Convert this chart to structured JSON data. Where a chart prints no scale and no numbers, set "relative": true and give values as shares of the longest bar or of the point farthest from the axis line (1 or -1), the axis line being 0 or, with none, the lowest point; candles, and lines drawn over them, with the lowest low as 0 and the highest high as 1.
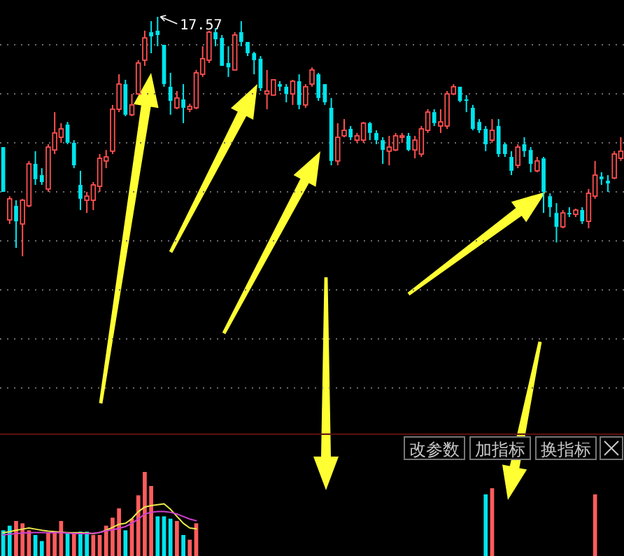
{
  "chart_data": [
    {
      "type": "candlestick",
      "relative": true,
      "grid": true,
      "annotations": [
        "17.57"
      ],
      "categories": [
        null,
        null,
        null,
        null,
        null,
        null,
        null,
        null,
        null,
        null,
        null,
        null,
        null,
        null,
        null,
        null,
        null,
        null,
        null,
        null,
        null,
        null,
        null,
        null,
        null,
        null,
        null,
        null,
        null,
        null,
        null,
        null,
        null,
        null,
        null,
        null,
        null,
        null,
        null,
        null,
        null,
        null,
        null,
        null,
        null,
        null,
        null,
        null,
        null,
        null,
        null,
        null,
        null,
        null,
        null,
        null,
        null,
        null,
        null,
        null,
        null,
        null,
        null,
        null,
        null,
        null,
        null,
        null,
        null,
        null,
        null,
        null,
        null,
        null,
        null,
        null,
        null,
        null,
        null,
        null,
        null,
        null,
        null,
        null,
        null,
        null,
        null,
        null,
        null,
        null,
        null,
        null,
        null,
        null,
        null,
        null,
        null
      ],
      "ohlc": [
        [
          0.456,
          0.456,
          0.269,
          0.269
        ],
        [
          0.152,
          0.251,
          0.135,
          0.24
        ],
        [
          0.211,
          0.234,
          0.035,
          0.146
        ],
        [
          0.135,
          0.24,
          0,
          0.234
        ],
        [
          0.211,
          0.398,
          0.205,
          0.386
        ],
        [
          0.386,
          0.439,
          0.298,
          0.322
        ],
        [
          0.339,
          0.368,
          0.298,
          0.31
        ],
        [
          0.281,
          0.468,
          0.269,
          0.456
        ],
        [
          0.444,
          0.602,
          0.427,
          0.515
        ],
        [
          0.497,
          0.556,
          0.474,
          0.532
        ],
        [
          0.55,
          0.561,
          0.468,
          0.474
        ],
        [
          0.474,
          0.485,
          0.368,
          0.38
        ],
        [
          0.298,
          0.357,
          0.193,
          0.24
        ],
        [
          0.234,
          0.269,
          0.181,
          0.251
        ],
        [
          0.234,
          0.31,
          0.193,
          0.298
        ],
        [
          0.292,
          0.427,
          0.269,
          0.409
        ],
        [
          0.398,
          0.444,
          0.368,
          0.415
        ],
        [
          0.439,
          0.632,
          0.427,
          0.614
        ],
        [
          0.614,
          0.76,
          0.602,
          0.719
        ],
        [
          0.719,
          0.737,
          0.585,
          0.591
        ],
        [
          0.591,
          0.678,
          0.585,
          0.632
        ],
        [
          0.678,
          0.819,
          0.673,
          0.807
        ],
        [
          0.819,
          0.942,
          0.795,
          0.912
        ],
        [
          0.936,
          0.982,
          0.848,
          0.918
        ],
        [
          0.942,
          1,
          0.877,
          0.924
        ],
        [
          0.883,
          0.883,
          0.708,
          0.719
        ],
        [
          0.708,
          0.766,
          0.591,
          0.649
        ],
        [
          0.62,
          0.69,
          0.614,
          0.661
        ],
        [
          0.655,
          0.719,
          0.556,
          0.62
        ],
        [
          0.614,
          0.637,
          0.602,
          0.626
        ],
        [
          0.62,
          0.778,
          0.614,
          0.766
        ],
        [
          0.76,
          0.877,
          0.749,
          0.825
        ],
        [
          0.819,
          0.942,
          0.807,
          0.936
        ],
        [
          0.936,
          0.953,
          0.877,
          0.906
        ],
        [
          0.912,
          0.924,
          0.795,
          0.795
        ],
        [
          0.807,
          0.877,
          0.749,
          0.789
        ],
        [
          0.778,
          0.936,
          0.778,
          0.924
        ],
        [
          0.936,
          0.982,
          0.877,
          0.895
        ],
        [
          0.895,
          0.895,
          0.836,
          0.848
        ],
        [
          0.848,
          0.854,
          0.76,
          0.819
        ],
        [
          0.825,
          0.836,
          0.69,
          0.702
        ],
        [
          0.678,
          0.778,
          0.614,
          0.69
        ],
        [
          0.673,
          0.737,
          0.673,
          0.737
        ],
        [
          0.719,
          0.731,
          0.69,
          0.708
        ],
        [
          0.708,
          0.719,
          0.643,
          0.678
        ],
        [
          0.678,
          0.737,
          0.632,
          0.731
        ],
        [
          0.731,
          0.76,
          0.614,
          0.632
        ],
        [
          0.632,
          0.719,
          0.62,
          0.708
        ],
        [
          0.719,
          0.789,
          0.708,
          0.778
        ],
        [
          0.76,
          0.766,
          0.649,
          0.661
        ],
        [
          0.719,
          0.719,
          0.632,
          0.643
        ],
        [
          0.62,
          0.661,
          0.38,
          0.398
        ],
        [
          0.398,
          0.556,
          0.38,
          0.497
        ],
        [
          0.503,
          0.573,
          0.497,
          0.526
        ],
        [
          0.532,
          0.544,
          0.485,
          0.497
        ],
        [
          0.485,
          0.515,
          0.474,
          0.503
        ],
        [
          0.485,
          0.561,
          0.474,
          0.556
        ],
        [
          0.556,
          0.561,
          0.485,
          0.515
        ],
        [
          0.515,
          0.526,
          0.468,
          0.485
        ],
        [
          0.485,
          0.497,
          0.386,
          0.444
        ],
        [
          0.439,
          0.503,
          0.38,
          0.456
        ],
        [
          0.444,
          0.515,
          0.439,
          0.503
        ],
        [
          0.497,
          0.515,
          0.474,
          0.503
        ],
        [
          0.503,
          0.515,
          0.439,
          0.444
        ],
        [
          0.444,
          0.503,
          0.409,
          0.485
        ],
        [
          0.427,
          0.544,
          0.415,
          0.532
        ],
        [
          0.526,
          0.614,
          0.515,
          0.602
        ],
        [
          0.602,
          0.614,
          0.544,
          0.556
        ],
        [
          0.544,
          0.614,
          0.515,
          0.561
        ],
        [
          0.544,
          0.69,
          0.532,
          0.678
        ],
        [
          0.678,
          0.719,
          0.673,
          0.708
        ],
        [
          0.708,
          0.708,
          0.643,
          0.649
        ],
        [
          0.655,
          0.673,
          0.602,
          0.649
        ],
        [
          0.62,
          0.632,
          0.526,
          0.532
        ],
        [
          0.561,
          0.573,
          0.515,
          0.526
        ],
        [
          0.532,
          0.544,
          0.439,
          0.468
        ],
        [
          0.485,
          0.573,
          0.474,
          0.526
        ],
        [
          0.544,
          0.573,
          0.415,
          0.427
        ],
        [
          0.468,
          0.474,
          0.415,
          0.427
        ],
        [
          0.415,
          0.439,
          0.339,
          0.357
        ],
        [
          0.38,
          0.468,
          0.368,
          0.456
        ],
        [
          0.468,
          0.497,
          0.415,
          0.439
        ],
        [
          0.444,
          0.456,
          0.351,
          0.386
        ],
        [
          0.357,
          0.415,
          0.351,
          0.398
        ],
        [
          0.409,
          0.415,
          0.181,
          0.269
        ],
        [
          0.251,
          0.263,
          0.164,
          0.205
        ],
        [
          0.181,
          0.222,
          0.058,
          0.123
        ],
        [
          0.123,
          0.193,
          0.117,
          0.181
        ],
        [
          0.181,
          0.205,
          0.164,
          0.175
        ],
        [
          0.175,
          0.199,
          0.164,
          0.193
        ],
        [
          0.193,
          0.205,
          0.135,
          0.146
        ],
        [
          0.146,
          0.281,
          0.117,
          0.263
        ],
        [
          0.251,
          0.398,
          0.24,
          0.339
        ],
        [
          0.333,
          0.351,
          0.298,
          0.322
        ],
        [
          0.316,
          0.339,
          0.269,
          0.304
        ],
        [
          0.327,
          0.439,
          0.322,
          0.427
        ],
        [
          0.409,
          0.497,
          0.398,
          0.439
        ]
      ]
    },
    {
      "type": "bar",
      "relative": true,
      "annotations": [
        "改参数",
        "加指标",
        "换指标"
      ],
      "categories": [
        null,
        null,
        null,
        null,
        null,
        null,
        null,
        null,
        null,
        null,
        null,
        null,
        null,
        null,
        null,
        null,
        null,
        null,
        null,
        null,
        null,
        null,
        null,
        null,
        null,
        null,
        null,
        null,
        null,
        null,
        null
      ],
      "values": [
        0.306,
        0.361,
        0.417,
        0.389,
        0.306,
        0.25,
        0.178,
        0.278,
        0.278,
        0.417,
        0.278,
        0.278,
        0.289,
        0.289,
        0.25,
        0.25,
        0.361,
        0.456,
        0.567,
        0.306,
        0.444,
        0.722,
        1,
        0.833,
        0.472,
        0.472,
        0.444,
        0.417,
        0.25,
        0.194,
        0.389
      ],
      "colors": [
        "#00e5ee",
        "#00e5ee",
        "#ff5c5c",
        "#ff5c5c",
        "#ff5c5c",
        "#00e5ee",
        "#00e5ee",
        "#ff5c5c",
        "#ff5c5c",
        "#ff5c5c",
        "#00e5ee",
        "#ff5c5c",
        "#00e5ee",
        "#00e5ee",
        "#ff5c5c",
        "#ff5c5c",
        "#ff5c5c",
        "#ff5c5c",
        "#ff5c5c",
        "#00e5ee",
        "#ff5c5c",
        "#ff5c5c",
        "#ff5c5c",
        "#ff5c5c",
        "#00e5ee",
        "#00e5ee",
        "#00e5ee",
        "#ff5c5c",
        "#00e5ee",
        "#ff5c5c",
        "#ff5c5c"
      ]
    },
    {
      "type": "line",
      "relative": true,
      "categories": [
        null,
        null,
        null,
        null,
        null,
        null,
        null,
        null,
        null,
        null,
        null,
        null,
        null,
        null,
        null,
        null,
        null,
        null,
        null,
        null,
        null,
        null,
        null,
        null,
        null,
        null,
        null,
        null,
        null,
        null,
        null
      ],
      "series": [
        {
          "color": "#e8e84a",
          "values": [
            0.075,
            0.108,
            0.151,
            0.188,
            0.223,
            0.188,
            0.151,
            0.121,
            0.105,
            0.089,
            0.075,
            0.075,
            0.075,
            0.059,
            0.046,
            0.081,
            0.151,
            0.242,
            0.344,
            0.374,
            0.522,
            0.747,
            0.895,
            0.941,
            0.97,
            1,
            0.823,
            0.597,
            0.374,
            0.223,
            0.194
          ]
        },
        {
          "color": "#d040d0",
          "values": [
            0,
            0.027,
            0.046,
            0.059,
            0.075,
            0.081,
            0.081,
            0.075,
            0.075,
            0.081,
            0.059,
            0.046,
            0.046,
            0.046,
            0.054,
            0.081,
            0.134,
            0.161,
            0.215,
            0.269,
            0.376,
            0.511,
            0.672,
            0.726,
            0.753,
            0.753,
            0.726,
            0.672,
            0.591,
            0.511,
            0.457
          ]
        }
      ]
    },
    {
      "type": "bar",
      "relative": true,
      "categories": [
        null,
        null,
        null,
        null,
        null,
        null,
        null,
        null,
        null,
        null,
        null,
        null,
        null,
        null,
        null,
        null,
        null,
        null,
        null,
        null,
        null,
        null,
        null,
        null,
        null,
        null,
        null,
        null,
        null,
        null,
        null,
        null,
        null,
        null,
        null,
        null,
        null,
        null,
        null,
        null,
        null,
        null,
        null,
        null,
        null,
        null,
        null,
        null,
        null,
        null,
        null,
        null,
        null,
        null,
        null,
        null,
        null,
        null,
        null,
        null,
        null,
        null,
        null,
        null,
        null,
        null,
        null,
        null,
        null,
        null,
        null,
        null,
        null,
        null,
        null,
        null,
        null,
        null,
        null,
        null,
        null,
        null,
        null,
        null,
        null,
        null,
        null,
        null,
        null,
        null,
        null,
        null,
        null,
        null,
        null,
        null,
        null
      ],
      "values": [
        null,
        null,
        null,
        null,
        null,
        null,
        null,
        null,
        null,
        null,
        null,
        null,
        null,
        null,
        null,
        null,
        null,
        null,
        null,
        null,
        null,
        null,
        null,
        null,
        null,
        null,
        null,
        null,
        null,
        null,
        null,
        null,
        null,
        null,
        null,
        null,
        null,
        null,
        null,
        null,
        null,
        null,
        null,
        null,
        null,
        null,
        null,
        null,
        null,
        null,
        null,
        null,
        null,
        null,
        null,
        null,
        null,
        null,
        null,
        null,
        null,
        null,
        null,
        null,
        null,
        null,
        null,
        null,
        null,
        null,
        null,
        null,
        null,
        null,
        null,
        0.909,
        1,
        null,
        null,
        null,
        null,
        null,
        null,
        null,
        null,
        null,
        null,
        null,
        null,
        null,
        null,
        null,
        0.909,
        null,
        null,
        null,
        null
      ],
      "colors": [
        null,
        null,
        null,
        null,
        null,
        null,
        null,
        null,
        null,
        null,
        null,
        null,
        null,
        null,
        null,
        null,
        null,
        null,
        null,
        null,
        null,
        null,
        null,
        null,
        null,
        null,
        null,
        null,
        null,
        null,
        null,
        null,
        null,
        null,
        null,
        null,
        null,
        null,
        null,
        null,
        null,
        null,
        null,
        null,
        null,
        null,
        null,
        null,
        null,
        null,
        null,
        null,
        null,
        null,
        null,
        null,
        null,
        null,
        null,
        null,
        null,
        null,
        null,
        null,
        null,
        null,
        null,
        null,
        null,
        null,
        null,
        null,
        null,
        null,
        null,
        "#00e5ee",
        "#ff5c5c",
        null,
        null,
        null,
        null,
        null,
        null,
        null,
        null,
        null,
        null,
        null,
        null,
        null,
        null,
        null,
        "#ff5c5c",
        null,
        null,
        null,
        null
      ]
    }
  ]
}
